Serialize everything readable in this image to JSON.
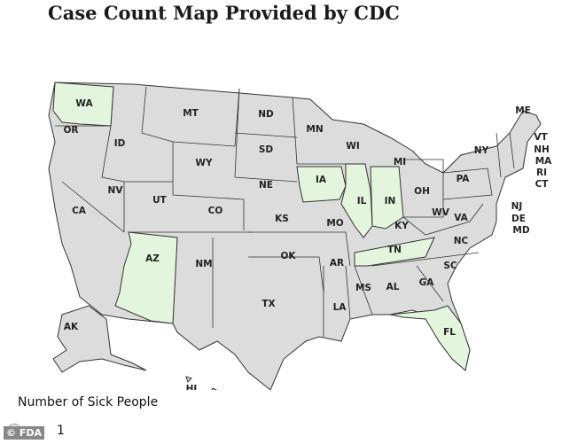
{
  "title": "Case Count Map Provided by CDC",
  "colors": {
    "default_state": "#dcdcdc",
    "case_state": "#e3f5dc",
    "border": "#333333"
  },
  "highlighted_states": [
    "WA",
    "AZ",
    "IA",
    "IL",
    "IN",
    "TN",
    "FL"
  ],
  "state_labels": [
    "WA",
    "OR",
    "ID",
    "MT",
    "ND",
    "SD",
    "WY",
    "NE",
    "MN",
    "WI",
    "MI",
    "IA",
    "IL",
    "IN",
    "OH",
    "PA",
    "NY",
    "ME",
    "VT",
    "NH",
    "MA",
    "RI",
    "CT",
    "NJ",
    "DE",
    "MD",
    "WV",
    "VA",
    "KY",
    "TN",
    "NC",
    "SC",
    "GA",
    "AL",
    "MS",
    "LA",
    "AR",
    "MO",
    "KS",
    "OK",
    "TX",
    "NM",
    "CO",
    "UT",
    "NV",
    "CA",
    "AZ",
    "FL",
    "AK",
    "HI"
  ],
  "legend": {
    "title": "Number of Sick People",
    "items": [
      {
        "label": "1"
      }
    ]
  },
  "watermark": "© FDA"
}
